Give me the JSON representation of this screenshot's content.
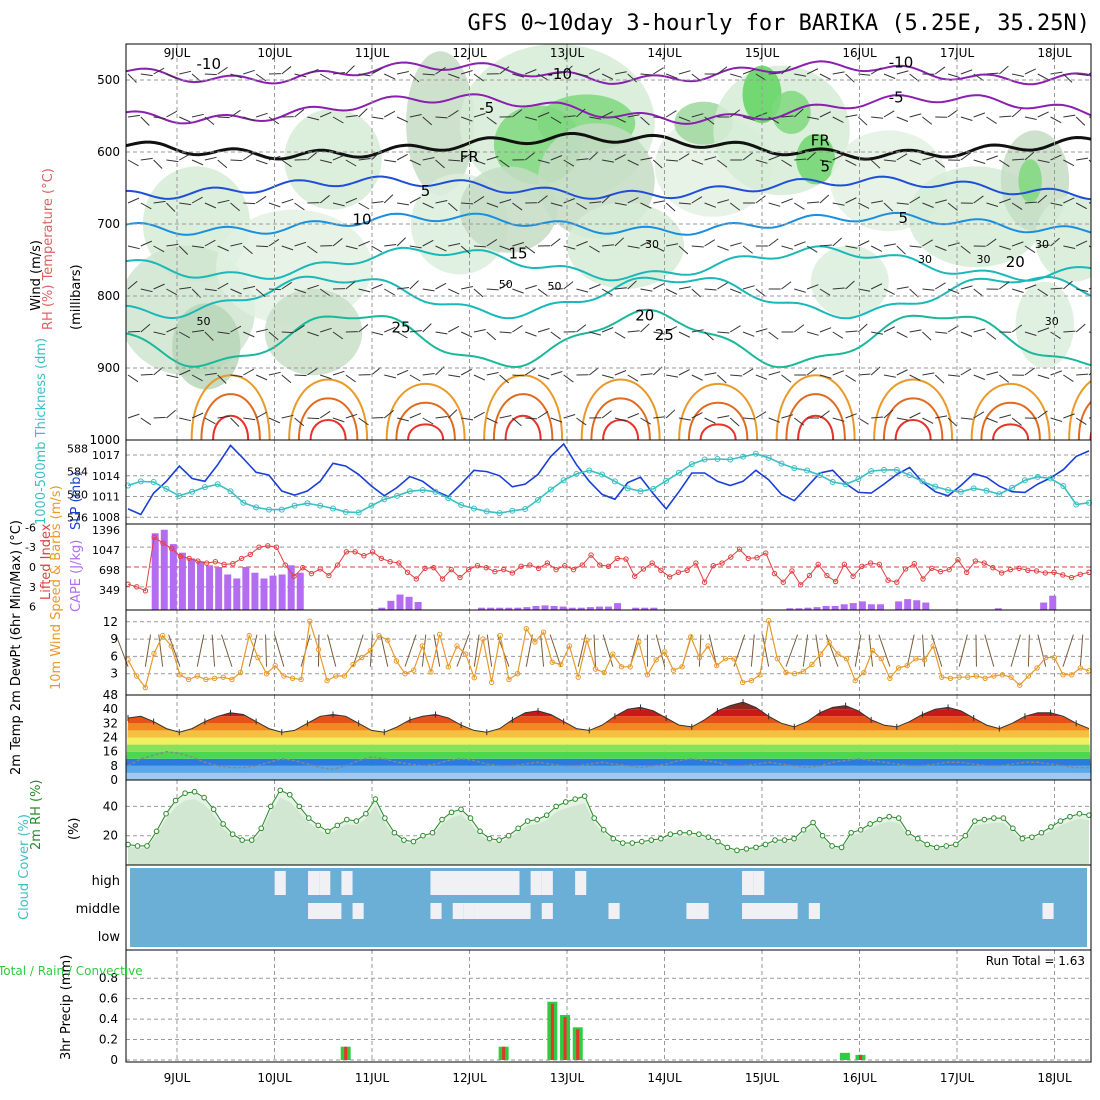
{
  "title": "GFS 0~10day 3-hourly for BARIKA (5.25E, 35.25N)",
  "colors": {
    "cloud_bg": "#6baed6",
    "cloud_fill": "#f0f0f5",
    "rain": "#2ecc40",
    "convective": "#e8322a",
    "cape": "#b46cf0",
    "lifted": "#e04040",
    "slp": "#1a3fd6",
    "thickness": "#3cbfc4",
    "wind": "#e89a2a",
    "rh": "#2a8a2a",
    "rh_fill": "#8fc98f",
    "humid_green": "#5fd35f"
  },
  "chart_data": [
    {
      "type": "heatmap",
      "name_id": "pressure-panel",
      "y_axis_title": [
        "RH (%)",
        "Temperature (°C)",
        "Wind (m/s)"
      ],
      "y_axis_subtitle": "(millibars)",
      "x": [
        "9JUL",
        "10JUL",
        "11JUL",
        "12JUL",
        "13JUL",
        "14JUL",
        "15JUL",
        "16JUL",
        "17JUL",
        "18JUL"
      ],
      "yticks": [
        500,
        600,
        700,
        800,
        900,
        1000
      ],
      "ylim": [
        450,
        1000
      ],
      "contour_labels": [
        {
          "text": "-10",
          "day": 0.2,
          "p": 478,
          "color": "#8a1fb0"
        },
        {
          "text": "-10",
          "day": 3.8,
          "p": 492,
          "color": "#8a1fb0"
        },
        {
          "text": "-10",
          "day": 7.3,
          "p": 476,
          "color": "#8a1fb0"
        },
        {
          "text": "-5",
          "day": 3.1,
          "p": 539,
          "color": "#8a1fb0"
        },
        {
          "text": "-5",
          "day": 7.3,
          "p": 524,
          "color": "#8a1fb0"
        },
        {
          "text": "FR",
          "day": 2.9,
          "p": 607,
          "color": "#000000"
        },
        {
          "text": "FR",
          "day": 6.5,
          "p": 584,
          "color": "#000000"
        },
        {
          "text": "5",
          "day": 2.5,
          "p": 654,
          "color": "#1f4fd6"
        },
        {
          "text": "5",
          "day": 6.6,
          "p": 620,
          "color": "#1f4fd6"
        },
        {
          "text": "10",
          "day": 1.8,
          "p": 694,
          "color": "#1a8fe0"
        },
        {
          "text": "5",
          "day": 7.4,
          "p": 692,
          "color": "#1a8fe0"
        },
        {
          "text": "15",
          "day": 3.4,
          "p": 741,
          "color": "#1ab8b8"
        },
        {
          "text": "20",
          "day": 4.7,
          "p": 827,
          "color": "#1ab8b8"
        },
        {
          "text": "20",
          "day": 8.5,
          "p": 753,
          "color": "#1ab8b8"
        },
        {
          "text": "25",
          "day": 2.2,
          "p": 844,
          "color": "#1ab89a"
        },
        {
          "text": "25",
          "day": 4.9,
          "p": 854,
          "color": "#1ab89a"
        }
      ],
      "rh_labels": [
        "30",
        "30",
        "30",
        "50",
        "50",
        "30",
        "30",
        "50",
        "30"
      ]
    },
    {
      "type": "line",
      "name_id": "slp-thickness",
      "left_label": "1000-500mb Thickness (dm)",
      "right_label": "SLP (mb)",
      "left_ticks": [
        576,
        580,
        584,
        588
      ],
      "right_ticks": [
        1008,
        1011,
        1014,
        1017
      ],
      "series": [
        {
          "key": "slp",
          "values": [
            1009.2,
            1008.4,
            1011.5,
            1013.2,
            1015.4,
            1013.6,
            1013.2,
            1015.6,
            1018.4,
            1016.5,
            1014.5,
            1014.1,
            1011.8,
            1011.2,
            1011.8,
            1013.2,
            1015.8,
            1015.4,
            1014.2,
            1012.5,
            1011.1,
            1012.3,
            1013.9,
            1013.2,
            1011.8,
            1011.0,
            1012.8,
            1014.8,
            1014.6,
            1014.0,
            1012.4,
            1012.8,
            1014.2,
            1016.8,
            1018.6,
            1015.6,
            1013.2,
            1011.3,
            1010.6,
            1013.0,
            1013.8,
            1011.4,
            1009.2,
            1011.7,
            1014.4,
            1014.4,
            1013.2,
            1012.6,
            1013.2,
            1014.8,
            1013.4,
            1011.3,
            1010.4,
            1012.4,
            1014.4,
            1014.8,
            1012.9,
            1011.6,
            1011.5,
            1012.8,
            1014.2,
            1015.2,
            1013.1,
            1011.7,
            1011.1,
            1012.6,
            1014.3,
            1013.8,
            1012.5,
            1011.7,
            1011.6,
            1012.8,
            1013.7,
            1014.9,
            1016.8,
            1017.6
          ]
        },
        {
          "key": "thickness",
          "values": [
            581.6,
            582.3,
            582.2,
            581.0,
            579.8,
            580.5,
            581.3,
            581.8,
            580.6,
            578.6,
            577.8,
            577.4,
            577.4,
            578.1,
            578.5,
            578.1,
            577.6,
            577.0,
            576.9,
            578.1,
            579.2,
            579.8,
            580.6,
            580.8,
            580.5,
            579.4,
            578.2,
            577.6,
            577.1,
            576.8,
            577.2,
            577.5,
            579.1,
            580.9,
            582.5,
            583.6,
            584.2,
            583.5,
            582.3,
            581.1,
            580.6,
            581.0,
            582.4,
            583.8,
            585.3,
            586.1,
            586.2,
            586.1,
            586.6,
            587.1,
            586.4,
            585.4,
            584.6,
            584.2,
            583.4,
            582.2,
            581.8,
            582.7,
            584.1,
            584.3,
            584.3,
            583.4,
            582.3,
            581.4,
            580.8,
            580.5,
            581.1,
            580.7,
            580.1,
            581.2,
            582.5,
            583.1,
            582.8,
            581.5,
            578.3,
            578.6
          ]
        }
      ]
    },
    {
      "type": "bar",
      "name_id": "cape-li",
      "left_label": "Lifted Index",
      "right_label": "CAPE (J/kg)",
      "left_ticks": [
        "-6",
        "-3",
        "0",
        "3",
        "6"
      ],
      "right_ticks": [
        "349",
        "698",
        "1047",
        "1396"
      ],
      "cape": [
        0,
        0,
        0,
        1340,
        1400,
        1150,
        1000,
        900,
        850,
        780,
        750,
        620,
        550,
        750,
        650,
        550,
        600,
        620,
        780,
        650,
        0,
        0,
        0,
        0,
        0,
        0,
        0,
        0,
        40,
        160,
        270,
        230,
        140,
        0,
        0,
        0,
        0,
        0,
        0,
        40,
        40,
        40,
        40,
        40,
        50,
        70,
        80,
        70,
        60,
        40,
        40,
        50,
        60,
        60,
        120,
        0,
        40,
        40,
        40,
        0,
        0,
        0,
        0,
        0,
        0,
        0,
        0,
        0,
        0,
        0,
        0,
        0,
        0,
        30,
        30,
        40,
        50,
        70,
        70,
        100,
        120,
        150,
        100,
        100,
        0,
        150,
        190,
        170,
        130,
        0,
        0,
        0,
        0,
        0,
        0,
        0,
        30,
        0,
        0,
        0,
        0,
        130,
        250,
        0,
        0,
        0,
        0
      ],
      "li": [
        2.6,
        3.0,
        3.6,
        -4.5,
        -3.6,
        -2.8,
        -1.6,
        -1.3,
        -0.9,
        -0.6,
        -0.8,
        -0.4,
        -0.5,
        -1.3,
        -1.9,
        -3.0,
        -3.2,
        -3.0,
        -0.3,
        1.4,
        0.1,
        1.0,
        0.3,
        1.3,
        -0.3,
        -2.3,
        -2.3,
        -1.7,
        -2.3,
        -1.3,
        -0.8,
        -0.6,
        0.8,
        1.8,
        0.2,
        0.1,
        1.8,
        0.4,
        1.6,
        0.4,
        -0.2,
        0.1,
        0.7,
        0.4,
        0.9,
        -0.1,
        -0.3,
        0.2,
        -0.6,
        0.4,
        -0.2,
        0.4,
        -0.3,
        -1.8,
        -0.3,
        -0.1,
        -1.3,
        -1.2,
        1.4,
        0.3,
        -0.6,
        0.5,
        1.5,
        0.8,
        0.5,
        -0.6,
        2.3,
        -0.2,
        -0.6,
        -1.5,
        -2.7,
        -1.3,
        -1.4,
        -2.1,
        1.0,
        2.3,
        0.6,
        2.7,
        1.3,
        -0.4,
        1.3,
        2.2,
        -0.4,
        1.4,
        -0.1,
        -0.6,
        -0.4,
        2.0,
        2.3,
        0.3,
        -0.5,
        1.8,
        0.2,
        0.7,
        0.4,
        -1.1,
        0.8,
        -0.9,
        -0.6,
        0.1,
        0.9,
        0.4,
        0.2,
        0.5,
        0.6,
        0.9,
        0.8,
        1.2,
        1.6,
        1.1,
        0.8
      ]
    },
    {
      "type": "line",
      "name_id": "wind10m",
      "left_label": "10m Wind Speed & Barbs (m/s)",
      "left_ticks": [
        3,
        6,
        9,
        12
      ],
      "values": [
        5.4,
        2.6,
        0.6,
        6.5,
        9.6,
        7.8,
        2.8,
        2.0,
        2.6,
        2.0,
        2.2,
        2.4,
        2.0,
        3.2,
        9.6,
        5.8,
        3.0,
        4.4,
        2.6,
        2.2,
        2.0,
        12.1,
        7.2,
        1.8,
        2.6,
        2.6,
        4.6,
        5.8,
        7.0,
        9.6,
        8.8,
        5.2,
        3.0,
        3.6,
        7.8,
        3.3,
        9.8,
        4.2,
        7.8,
        6.4,
        2.3,
        9.0,
        1.5,
        9.6,
        2.0,
        3.0,
        10.8,
        8.5,
        10.2,
        5.0,
        4.6,
        7.8,
        2.4,
        8.8,
        3.8,
        3.2,
        6.4,
        4.2,
        4.2,
        8.5,
        2.8,
        5.4,
        6.8,
        3.6,
        4.2,
        9.4,
        5.8,
        7.8,
        4.4,
        5.6,
        5.6,
        1.5,
        1.8,
        2.8,
        12.2,
        5.6,
        3.2,
        3.0,
        3.4,
        4.6,
        6.4,
        8.4,
        6.4,
        5.6,
        1.8,
        3.2,
        7.0,
        5.6,
        2.2,
        4.0,
        4.4,
        5.6,
        5.4,
        7.8,
        2.4,
        2.2,
        2.4,
        2.4,
        2.6,
        2.2,
        2.6,
        2.8,
        2.4,
        1.0,
        2.6,
        4.0,
        5.8,
        5.8,
        2.8,
        2.8,
        4.0,
        3.5
      ]
    },
    {
      "type": "area",
      "name_id": "temp2m",
      "left_label": "2m Temp 2m DewPt (6hr Min/Max) (°C)",
      "left_ticks": [
        0,
        8,
        16,
        24,
        32,
        40,
        48
      ],
      "temp": [
        35,
        36,
        33,
        29,
        27,
        29,
        33,
        36,
        38,
        37,
        33,
        29,
        27,
        28,
        32,
        36,
        37,
        36,
        32,
        28,
        27,
        30,
        34,
        36,
        37,
        35,
        31,
        28,
        27,
        29,
        34,
        38,
        39,
        37,
        33,
        29,
        28,
        31,
        36,
        40,
        41,
        39,
        35,
        31,
        30,
        34,
        39,
        42,
        44,
        41,
        36,
        32,
        30,
        33,
        38,
        41,
        42,
        39,
        34,
        31,
        30,
        33,
        37,
        40,
        41,
        39,
        35,
        31,
        29,
        32,
        36,
        38,
        38,
        36,
        32,
        29
      ],
      "dewpt": [
        8,
        12,
        14,
        16,
        15,
        13,
        10,
        8,
        7,
        7,
        8,
        10,
        12,
        11,
        9,
        7,
        6,
        8,
        11,
        13,
        12,
        10,
        9,
        8,
        9,
        11,
        12,
        11,
        9,
        8,
        8,
        9,
        10,
        9,
        8,
        8,
        9,
        10,
        9,
        8,
        7,
        8,
        9,
        11,
        12,
        11,
        10,
        8,
        8,
        9,
        10,
        9,
        8,
        7,
        8,
        10,
        11,
        12,
        11,
        10,
        9,
        8,
        8,
        9,
        10,
        10,
        9,
        8,
        8,
        9,
        10,
        10,
        9,
        8,
        7,
        7
      ]
    },
    {
      "type": "area",
      "name_id": "rh2m",
      "left_label": "2m RH (%)",
      "left_ticks": [
        20,
        40
      ],
      "values": [
        14,
        13,
        13,
        23,
        35,
        44,
        49,
        50,
        46,
        38,
        28,
        21,
        17,
        17,
        25,
        40,
        51,
        48,
        40,
        32,
        27,
        23,
        27,
        31,
        30,
        35,
        45,
        32,
        22,
        17,
        16,
        20,
        22,
        31,
        36,
        38,
        32,
        23,
        18,
        17,
        20,
        25,
        30,
        31,
        34,
        40,
        43,
        45,
        47,
        32,
        24,
        18,
        15,
        15,
        16,
        17,
        18,
        21,
        22,
        22,
        21,
        19,
        16,
        12,
        10,
        11,
        12,
        14,
        17,
        17,
        18,
        24,
        29,
        20,
        13,
        12,
        22,
        24,
        28,
        31,
        33,
        32,
        22,
        18,
        14,
        12,
        13,
        14,
        20,
        30,
        31,
        32,
        32,
        25,
        18,
        19,
        22,
        26,
        30,
        33,
        35,
        34
      ]
    },
    {
      "type": "heatmap",
      "name_id": "cloud",
      "left_label": "Cloud Cover (%)",
      "rows": [
        "high",
        "middle",
        "low"
      ]
    },
    {
      "type": "bar",
      "name_id": "precip",
      "left_label": "Total / Rain / Convective",
      "right_axis": "3hr Precip (mm)",
      "left_ticks": [
        0,
        0.2,
        0.4,
        0.6,
        0.8
      ],
      "run_total_label": "Run Total = 1.63",
      "bars": [
        {
          "day": 1.73,
          "total": 0.13,
          "conv": 0.13
        },
        {
          "day": 3.35,
          "total": 0.13,
          "conv": 0.13
        },
        {
          "day": 3.85,
          "total": 0.57,
          "conv": 0.55
        },
        {
          "day": 3.98,
          "total": 0.44,
          "conv": 0.42
        },
        {
          "day": 4.11,
          "total": 0.32,
          "conv": 0.3
        },
        {
          "day": 6.85,
          "total": 0.07,
          "conv": 0.0
        },
        {
          "day": 7.01,
          "total": 0.05,
          "conv": 0.05
        }
      ]
    }
  ],
  "labels": {
    "x_days": [
      "9JUL",
      "10JUL",
      "11JUL",
      "12JUL",
      "13JUL",
      "14JUL",
      "15JUL",
      "16JUL",
      "17JUL",
      "18JUL"
    ]
  }
}
